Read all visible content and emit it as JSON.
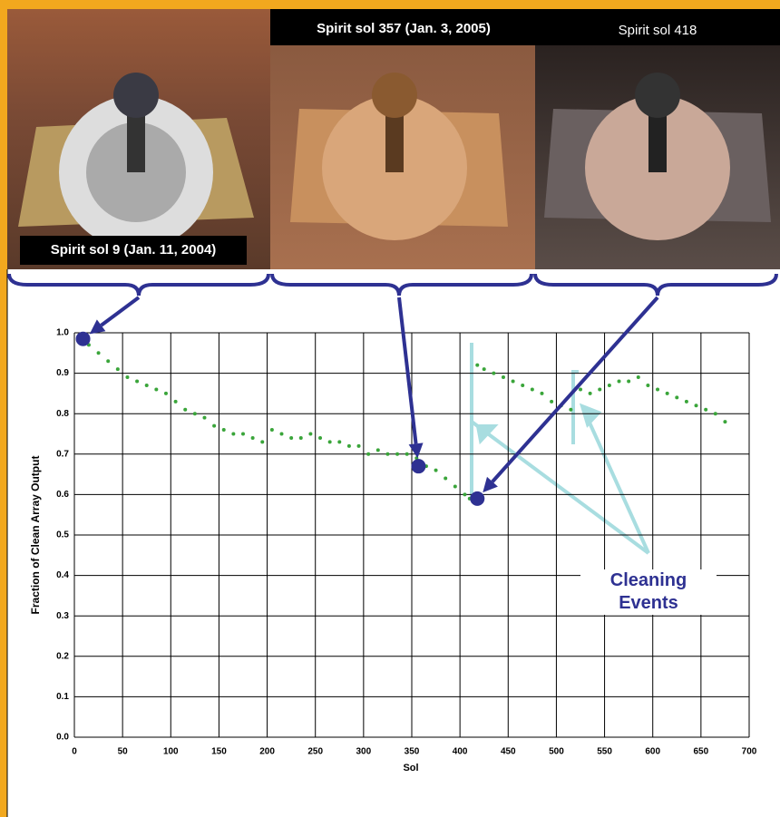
{
  "photos": [
    {
      "caption": "Spirit sol 9 (Jan. 11, 2004)"
    },
    {
      "caption": "Spirit sol 357 (Jan. 3, 2005)"
    },
    {
      "caption": "Spirit sol 418"
    }
  ],
  "chart_data": {
    "type": "scatter",
    "x_label": "Sol",
    "y_label": "Fraction of Clean Array Output",
    "annotation": "Cleaning Events",
    "xlim": [
      0,
      700
    ],
    "ylim": [
      0,
      1
    ],
    "xticks": [
      0,
      50,
      100,
      150,
      200,
      250,
      300,
      350,
      400,
      450,
      500,
      550,
      600,
      650,
      700
    ],
    "yticks": [
      {
        "value": 0,
        "label": "0.0"
      },
      {
        "value": 0.1,
        "label": "0.1"
      },
      {
        "value": 0.2,
        "label": "0.2"
      },
      {
        "value": 0.3,
        "label": "0.3"
      },
      {
        "value": 0.4,
        "label": "0.4"
      },
      {
        "value": 0.5,
        "label": "0.5"
      },
      {
        "value": 0.6,
        "label": "0.6"
      },
      {
        "value": 0.7,
        "label": "0.7"
      },
      {
        "value": 0.8,
        "label": "0.8"
      },
      {
        "value": 0.9,
        "label": "0.9"
      },
      {
        "value": 1,
        "label": "1.0"
      }
    ],
    "grid": true,
    "series": [
      {
        "color": "#3aa53a",
        "x": [
          5,
          15,
          25,
          35,
          45,
          55,
          65,
          75,
          85,
          95,
          105,
          115,
          125,
          135,
          145,
          155,
          165,
          175,
          185,
          195,
          205,
          215,
          225,
          235,
          245,
          255,
          265,
          275,
          285,
          295,
          305,
          315,
          325,
          335,
          345,
          355,
          365,
          375,
          385,
          395,
          405,
          410,
          418,
          425,
          435,
          445,
          455,
          465,
          475,
          485,
          495,
          505,
          515,
          525,
          535,
          545,
          555,
          565,
          575,
          585,
          595,
          605,
          615,
          625,
          635,
          645,
          655,
          665,
          675
        ],
        "values": [
          0.98,
          0.97,
          0.95,
          0.93,
          0.91,
          0.89,
          0.88,
          0.87,
          0.86,
          0.85,
          0.83,
          0.81,
          0.8,
          0.79,
          0.77,
          0.76,
          0.75,
          0.75,
          0.74,
          0.73,
          0.76,
          0.75,
          0.74,
          0.74,
          0.75,
          0.74,
          0.73,
          0.73,
          0.72,
          0.72,
          0.7,
          0.71,
          0.7,
          0.7,
          0.7,
          0.69,
          0.67,
          0.66,
          0.64,
          0.62,
          0.6,
          0.59,
          0.92,
          0.91,
          0.9,
          0.89,
          0.88,
          0.87,
          0.86,
          0.85,
          0.83,
          0.82,
          0.81,
          0.86,
          0.85,
          0.86,
          0.87,
          0.88,
          0.88,
          0.89,
          0.87,
          0.86,
          0.85,
          0.84,
          0.83,
          0.82,
          0.81,
          0.8,
          0.78
        ]
      },
      {
        "color": "#2e3192",
        "x": [
          9,
          357,
          418
        ],
        "values": [
          0.985,
          0.67,
          0.59
        ]
      }
    ]
  }
}
